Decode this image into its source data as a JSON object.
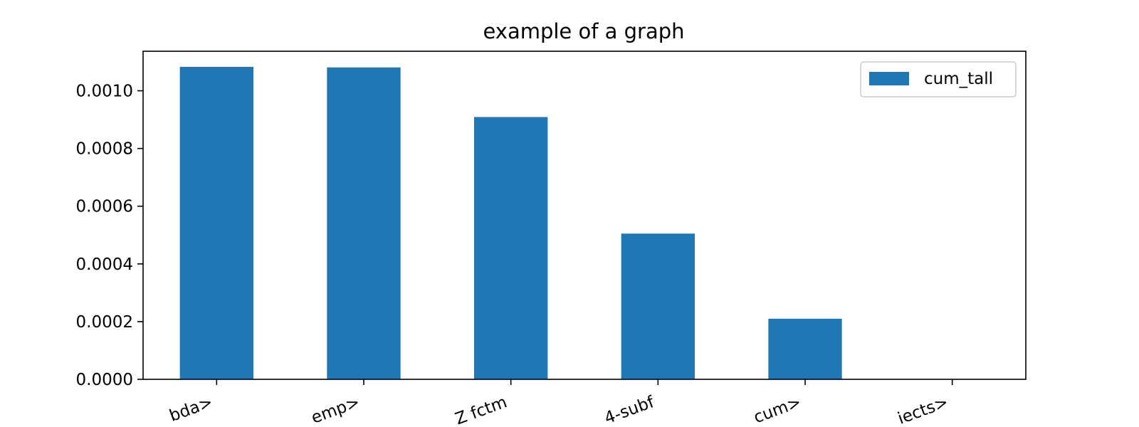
{
  "chart_data": {
    "type": "bar",
    "title": "example of a graph",
    "xlabel": "",
    "ylabel": "",
    "categories": [
      "bda>",
      "emp>",
      "Z fctm",
      "4-subf",
      "cum>",
      "iects>"
    ],
    "series": [
      {
        "name": "cum_tall",
        "color": "#1f77b4",
        "values": [
          0.001083,
          0.001081,
          0.000909,
          0.000505,
          0.00021,
          0.0
        ]
      }
    ],
    "ylim": [
      0,
      0.001137
    ],
    "yticks": [
      0.0,
      0.0002,
      0.0004,
      0.0006,
      0.0008,
      0.001
    ],
    "ytick_labels": [
      "0.0000",
      "0.0002",
      "0.0004",
      "0.0006",
      "0.0008",
      "0.0010"
    ],
    "legend_placement": "top-right",
    "grid": false
  }
}
